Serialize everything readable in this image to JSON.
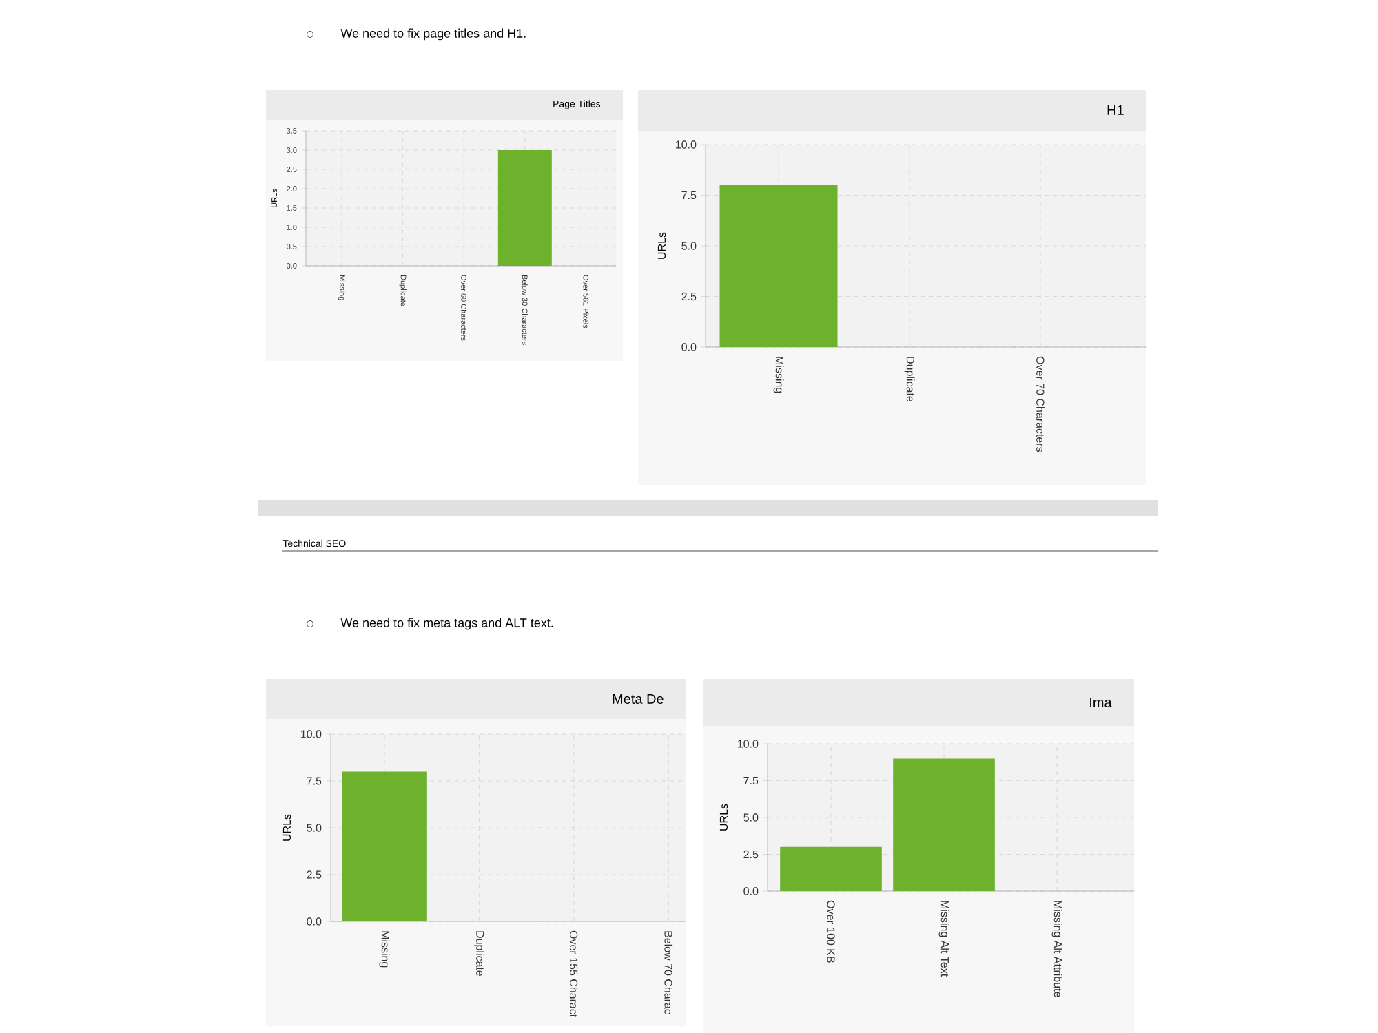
{
  "chart_data": [
    {
      "type": "bar",
      "title": "Page Titles",
      "ylabel": "URLs",
      "categories": [
        "Missing",
        "Duplicate",
        "Over 60 Characters",
        "Below 30 Characters",
        "Over 561 Pixels"
      ],
      "values": [
        0,
        0,
        0,
        3,
        0
      ],
      "color": "#6db12c",
      "ylim": [
        0,
        3.5
      ],
      "yticks": [
        {
          "value": 0,
          "label": "0.0"
        },
        {
          "value": 0.5,
          "label": "0.5"
        },
        {
          "value": 1,
          "label": "1.0"
        },
        {
          "value": 1.5,
          "label": "1.5"
        },
        {
          "value": 2,
          "label": "2.0"
        },
        {
          "value": 2.5,
          "label": "2.5"
        },
        {
          "value": 3,
          "label": "3.0"
        },
        {
          "value": 3.5,
          "label": "3.5"
        }
      ],
      "grid": true,
      "annotations": [
        "We need to fix page titles and H1."
      ]
    },
    {
      "type": "bar",
      "title": "H1",
      "ylabel": "URLs",
      "categories": [
        "Missing",
        "Duplicate",
        "Over 70 Characters"
      ],
      "values": [
        8,
        0,
        0
      ],
      "color": "#6db12c",
      "ylim": [
        0,
        10
      ],
      "yticks": [
        {
          "value": 0,
          "label": "0.0"
        },
        {
          "value": 2.5,
          "label": "2.5"
        },
        {
          "value": 5,
          "label": "5.0"
        },
        {
          "value": 7.5,
          "label": "7.5"
        },
        {
          "value": 10,
          "label": "10.0"
        }
      ],
      "grid": true
    },
    {
      "type": "bar",
      "title": "Meta De",
      "ylabel": "URLs",
      "categories": [
        "Missing",
        "Duplicate",
        "Over 155 Charact",
        "Below 70 Charac"
      ],
      "values": [
        8,
        0,
        0,
        0
      ],
      "color": "#6db12c",
      "ylim": [
        0,
        10
      ],
      "yticks": [
        {
          "value": 0,
          "label": "0.0"
        },
        {
          "value": 2.5,
          "label": "2.5"
        },
        {
          "value": 5,
          "label": "5.0"
        },
        {
          "value": 7.5,
          "label": "7.5"
        },
        {
          "value": 10,
          "label": "10.0"
        }
      ],
      "grid": true,
      "annotations": [
        "Technical SEO",
        "We need to fix meta tags and ALT text."
      ]
    },
    {
      "type": "bar",
      "title": "Ima",
      "ylabel": "URLs",
      "categories": [
        "Over 100 KB",
        "Missing Alt Text",
        "Missing Alt Attribute"
      ],
      "values": [
        3,
        9,
        0
      ],
      "color": "#6db12c",
      "ylim": [
        0,
        10
      ],
      "yticks": [
        {
          "value": 0,
          "label": "0.0"
        },
        {
          "value": 2.5,
          "label": "2.5"
        },
        {
          "value": 5,
          "label": "5.0"
        },
        {
          "value": 7.5,
          "label": "7.5"
        },
        {
          "value": 10,
          "label": "10.0"
        }
      ],
      "grid": true
    }
  ]
}
